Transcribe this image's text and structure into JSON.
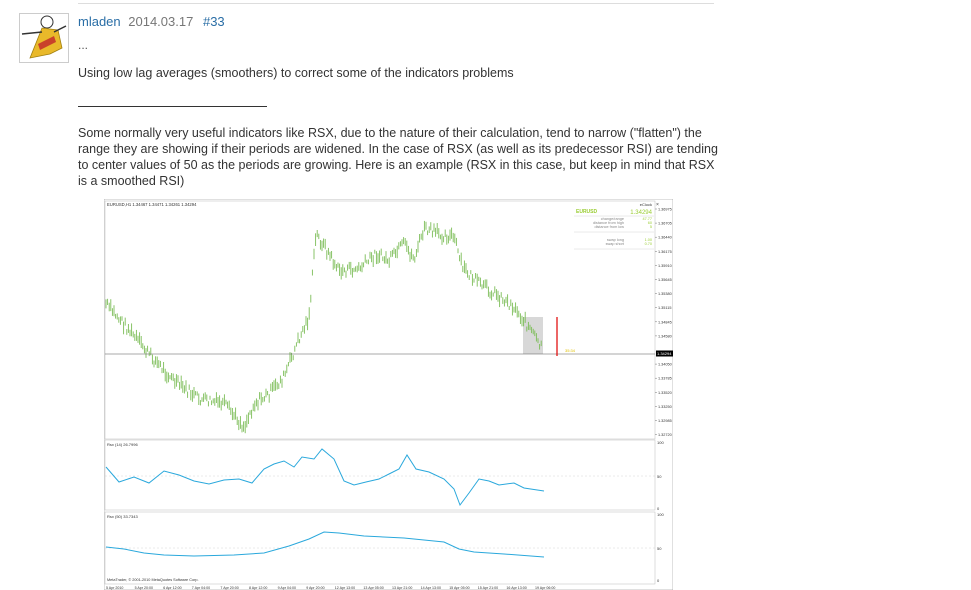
{
  "post": {
    "username": "mladen",
    "date": "2014.03.17",
    "post_number": "#33",
    "ellipsis": "...",
    "heading": "Using low lag averages (smoothers) to correct some of the indicators problems",
    "paragraph": "Some normally very useful indicators like RSX, due to the nature of their calculation, tend to narrow (\"flatten\") the range they are showing if their periods are widened. In the case of RSX (as well as its predecessor RSI) are tending to center values of 50 as the periods are growing. Here is an example (RSX in this case, but keep in mind that RSX is a smoothed RSI)"
  },
  "chart_image": {
    "main_title": "EURUSD,H1  1.34467 1.34471 1.34261 1.34294",
    "panel_title": "eClock",
    "close_glyph": "×",
    "info_symbol": "EURUSD",
    "info_price": "1.34294",
    "info_rows": [
      {
        "label": "change/range",
        "value": "47.77"
      },
      {
        "label": "distance from high",
        "value": "60"
      },
      {
        "label": "distance from low",
        "value": "5"
      },
      {
        "label": "swap long",
        "value": "1.00"
      },
      {
        "label": "swap short",
        "value": "0.70"
      }
    ],
    "clock_text": "35:34",
    "price_ticks": [
      "1.36975",
      "1.36705",
      "1.36440",
      "1.36175",
      "1.35910",
      "1.35645",
      "1.35380",
      "1.35115",
      "1.34845",
      "1.34580",
      "1.34294",
      "1.34050",
      "1.33785",
      "1.33520",
      "1.33250",
      "1.32985",
      "1.32720"
    ],
    "current_price": "1.34294",
    "rsi1_title": "Rsx (14) 26.7996",
    "rsi2_title": "Rsx (50) 33.7343",
    "rsi_ticks_top": "100",
    "rsi_ticks_mid": "50",
    "rsi_ticks_bot": "0",
    "copyright": "MetaTrader, © 2001-2010 MetaQuotes Software Corp.",
    "date_ticks": [
      "5 Apr 2010",
      "5 Apr 20:00",
      "6 Apr 12:00",
      "7 Apr 04:00",
      "7 Apr 20:00",
      "8 Apr 12:00",
      "9 Apr 04:00",
      "9 Apr 20:00",
      "12 Apr 13:00",
      "13 Apr 05:00",
      "13 Apr 21:00",
      "14 Apr 13:00",
      "15 Apr 05:00",
      "15 Apr 21:00",
      "16 Apr 13:00",
      "19 Apr 06:00"
    ],
    "colors": {
      "bars": "#7cbd58",
      "rsi_line": "#2aa8dc",
      "highlight": "#c8c8c8",
      "marker": "#e00000",
      "info_green": "#9acd32"
    }
  }
}
